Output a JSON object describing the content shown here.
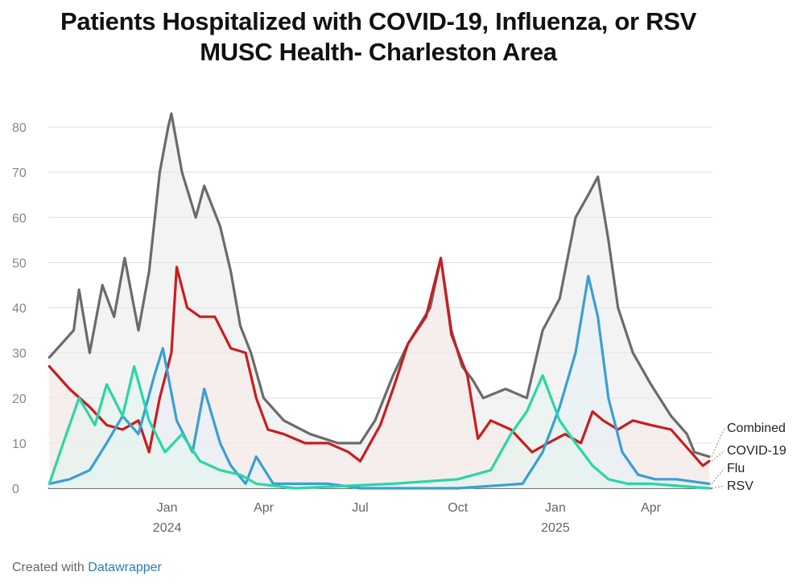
{
  "chart_data": {
    "type": "line",
    "title": "Patients Hospitalized with COVID-19, Influenza, or RSV",
    "subtitle": "MUSC Health- Charleston Area",
    "y_ticks": [
      "0",
      "10",
      "20",
      "30",
      "40",
      "50",
      "60",
      "70",
      "80"
    ],
    "ylim": [
      0,
      85
    ],
    "grid": true,
    "x_ticks": [
      {
        "date": "2024-01-01",
        "label": "Jan",
        "year": "2024"
      },
      {
        "date": "2024-04-01",
        "label": "Apr",
        "year": ""
      },
      {
        "date": "2024-07-01",
        "label": "Jul",
        "year": ""
      },
      {
        "date": "2024-10-01",
        "label": "Oct",
        "year": ""
      },
      {
        "date": "2025-01-01",
        "label": "Jan",
        "year": "2025"
      },
      {
        "date": "2025-04-01",
        "label": "Apr",
        "year": ""
      }
    ],
    "xlim": [
      "2023-09-11",
      "2025-05-29"
    ],
    "series": [
      {
        "name": "Combined",
        "color": "#6b6b6b",
        "fill": "#e9e9e9",
        "points": [
          [
            "2023-09-12",
            29
          ],
          [
            "2023-10-05",
            35
          ],
          [
            "2023-10-10",
            44
          ],
          [
            "2023-10-20",
            30
          ],
          [
            "2023-11-01",
            45
          ],
          [
            "2023-11-12",
            38
          ],
          [
            "2023-11-22",
            51
          ],
          [
            "2023-12-05",
            35
          ],
          [
            "2023-12-15",
            48
          ],
          [
            "2023-12-25",
            70
          ],
          [
            "2024-01-02",
            80
          ],
          [
            "2024-01-05",
            83
          ],
          [
            "2024-01-15",
            70
          ],
          [
            "2024-01-28",
            60
          ],
          [
            "2024-02-05",
            67
          ],
          [
            "2024-02-20",
            58
          ],
          [
            "2024-03-01",
            48
          ],
          [
            "2024-03-10",
            36
          ],
          [
            "2024-03-20",
            30
          ],
          [
            "2024-04-01",
            20
          ],
          [
            "2024-04-20",
            15
          ],
          [
            "2024-05-15",
            12
          ],
          [
            "2024-06-10",
            10
          ],
          [
            "2024-07-01",
            10
          ],
          [
            "2024-07-15",
            15
          ],
          [
            "2024-08-01",
            25
          ],
          [
            "2024-08-15",
            32
          ],
          [
            "2024-09-05",
            40
          ],
          [
            "2024-09-15",
            51
          ],
          [
            "2024-09-25",
            35
          ],
          [
            "2024-10-05",
            27
          ],
          [
            "2024-10-15",
            24
          ],
          [
            "2024-10-25",
            20
          ],
          [
            "2024-11-15",
            22
          ],
          [
            "2024-12-05",
            20
          ],
          [
            "2024-12-20",
            35
          ],
          [
            "2025-01-05",
            42
          ],
          [
            "2025-01-20",
            60
          ],
          [
            "2025-02-01",
            65
          ],
          [
            "2025-02-10",
            69
          ],
          [
            "2025-02-20",
            55
          ],
          [
            "2025-03-01",
            40
          ],
          [
            "2025-03-15",
            30
          ],
          [
            "2025-04-01",
            23
          ],
          [
            "2025-04-20",
            16
          ],
          [
            "2025-05-05",
            12
          ],
          [
            "2025-05-12",
            8
          ],
          [
            "2025-05-26",
            7
          ]
        ]
      },
      {
        "name": "COVID-19",
        "color": "#c71e1e",
        "fill": "#f7e8e8",
        "points": [
          [
            "2023-09-12",
            27
          ],
          [
            "2023-10-01",
            22
          ],
          [
            "2023-10-20",
            18
          ],
          [
            "2023-11-05",
            14
          ],
          [
            "2023-11-20",
            13
          ],
          [
            "2023-12-05",
            15
          ],
          [
            "2023-12-15",
            8
          ],
          [
            "2023-12-25",
            20
          ],
          [
            "2024-01-05",
            30
          ],
          [
            "2024-01-10",
            49
          ],
          [
            "2024-01-20",
            40
          ],
          [
            "2024-02-01",
            38
          ],
          [
            "2024-02-15",
            38
          ],
          [
            "2024-03-01",
            31
          ],
          [
            "2024-03-15",
            30
          ],
          [
            "2024-03-25",
            20
          ],
          [
            "2024-04-05",
            13
          ],
          [
            "2024-04-20",
            12
          ],
          [
            "2024-05-10",
            10
          ],
          [
            "2024-06-01",
            10
          ],
          [
            "2024-06-20",
            8
          ],
          [
            "2024-07-01",
            6
          ],
          [
            "2024-07-20",
            14
          ],
          [
            "2024-08-01",
            22
          ],
          [
            "2024-08-15",
            32
          ],
          [
            "2024-09-01",
            38
          ],
          [
            "2024-09-15",
            51
          ],
          [
            "2024-09-25",
            34
          ],
          [
            "2024-10-10",
            25
          ],
          [
            "2024-10-20",
            11
          ],
          [
            "2024-11-01",
            15
          ],
          [
            "2024-11-20",
            13
          ],
          [
            "2024-12-10",
            8
          ],
          [
            "2024-12-25",
            10
          ],
          [
            "2025-01-10",
            12
          ],
          [
            "2025-01-25",
            10
          ],
          [
            "2025-02-05",
            17
          ],
          [
            "2025-02-15",
            15
          ],
          [
            "2025-03-01",
            13
          ],
          [
            "2025-03-15",
            15
          ],
          [
            "2025-04-01",
            14
          ],
          [
            "2025-04-20",
            13
          ],
          [
            "2025-05-05",
            9
          ],
          [
            "2025-05-20",
            5
          ],
          [
            "2025-05-26",
            6
          ]
        ]
      },
      {
        "name": "Flu",
        "color": "#3a9fd1",
        "fill": "#e4f1f7",
        "points": [
          [
            "2023-09-12",
            1
          ],
          [
            "2023-10-01",
            2
          ],
          [
            "2023-10-20",
            4
          ],
          [
            "2023-11-05",
            10
          ],
          [
            "2023-11-20",
            16
          ],
          [
            "2023-12-05",
            12
          ],
          [
            "2023-12-20",
            25
          ],
          [
            "2023-12-28",
            31
          ],
          [
            "2024-01-10",
            15
          ],
          [
            "2024-01-25",
            8
          ],
          [
            "2024-02-05",
            22
          ],
          [
            "2024-02-20",
            10
          ],
          [
            "2024-03-01",
            5
          ],
          [
            "2024-03-15",
            1
          ],
          [
            "2024-03-25",
            7
          ],
          [
            "2024-04-10",
            1
          ],
          [
            "2024-05-01",
            1
          ],
          [
            "2024-06-01",
            1
          ],
          [
            "2024-07-01",
            0
          ],
          [
            "2024-10-01",
            0
          ],
          [
            "2024-12-01",
            1
          ],
          [
            "2024-12-20",
            8
          ],
          [
            "2025-01-05",
            18
          ],
          [
            "2025-01-20",
            30
          ],
          [
            "2025-02-01",
            47
          ],
          [
            "2025-02-10",
            38
          ],
          [
            "2025-02-20",
            20
          ],
          [
            "2025-03-05",
            8
          ],
          [
            "2025-03-20",
            3
          ],
          [
            "2025-04-05",
            2
          ],
          [
            "2025-04-25",
            2
          ],
          [
            "2025-05-26",
            1
          ]
        ]
      },
      {
        "name": "RSV",
        "color": "#2ad6a5",
        "fill": "#e2f6ef",
        "points": [
          [
            "2023-09-12",
            1
          ],
          [
            "2023-09-25",
            10
          ],
          [
            "2023-10-10",
            20
          ],
          [
            "2023-10-25",
            14
          ],
          [
            "2023-11-05",
            23
          ],
          [
            "2023-11-20",
            16
          ],
          [
            "2023-12-01",
            27
          ],
          [
            "2023-12-15",
            15
          ],
          [
            "2023-12-30",
            8
          ],
          [
            "2024-01-15",
            12
          ],
          [
            "2024-02-01",
            6
          ],
          [
            "2024-02-20",
            4
          ],
          [
            "2024-03-10",
            3
          ],
          [
            "2024-03-25",
            1
          ],
          [
            "2024-05-01",
            0
          ],
          [
            "2024-08-01",
            1
          ],
          [
            "2024-10-01",
            2
          ],
          [
            "2024-11-01",
            4
          ],
          [
            "2024-11-20",
            12
          ],
          [
            "2024-12-05",
            17
          ],
          [
            "2024-12-20",
            25
          ],
          [
            "2025-01-05",
            15
          ],
          [
            "2025-01-20",
            10
          ],
          [
            "2025-02-05",
            5
          ],
          [
            "2025-02-20",
            2
          ],
          [
            "2025-03-10",
            1
          ],
          [
            "2025-04-01",
            1
          ],
          [
            "2025-05-26",
            0
          ]
        ]
      }
    ],
    "series_labels": [
      "Combined",
      "COVID-19",
      "Flu",
      "RSV"
    ]
  },
  "footer": {
    "prefix": "Created with",
    "brand": "Datawrapper"
  }
}
